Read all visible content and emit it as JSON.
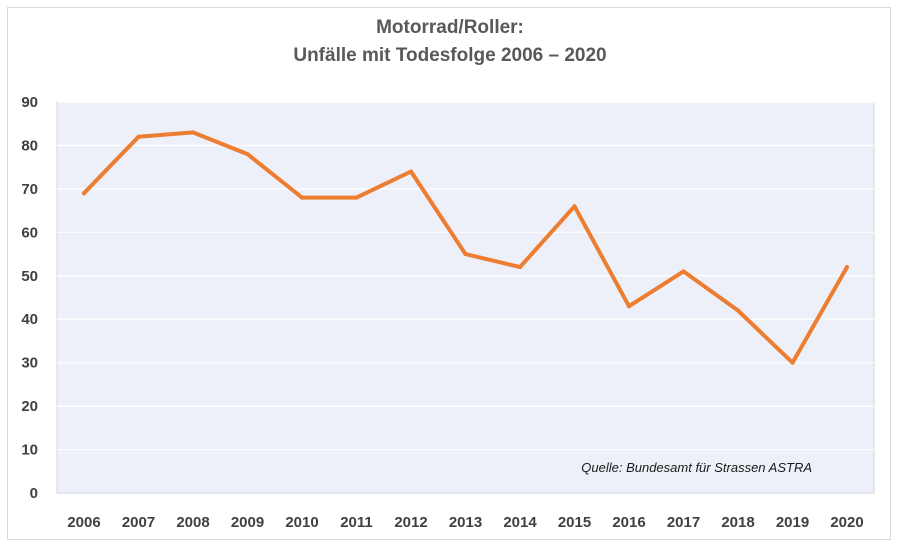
{
  "chart_data": {
    "type": "line",
    "title": "Motorrad/Roller:",
    "subtitle": "Unfälle mit Todesfolge 2006 – 2020",
    "categories": [
      "2006",
      "2007",
      "2008",
      "2009",
      "2010",
      "2011",
      "2012",
      "2013",
      "2014",
      "2015",
      "2016",
      "2017",
      "2018",
      "2019",
      "2020"
    ],
    "series": [
      {
        "values": [
          69,
          82,
          83,
          78,
          68,
          68,
          74,
          55,
          52,
          66,
          43,
          51,
          42,
          30,
          52
        ],
        "color": "#ed7d31"
      }
    ],
    "ylim": [
      0,
      90
    ],
    "yticks": [
      "0",
      "10",
      "20",
      "30",
      "40",
      "50",
      "60",
      "70",
      "80",
      "90"
    ],
    "grid": true,
    "plot_background": "#edf0f8",
    "annotation": "Quelle: Bundesamt für Strassen ASTRA"
  }
}
